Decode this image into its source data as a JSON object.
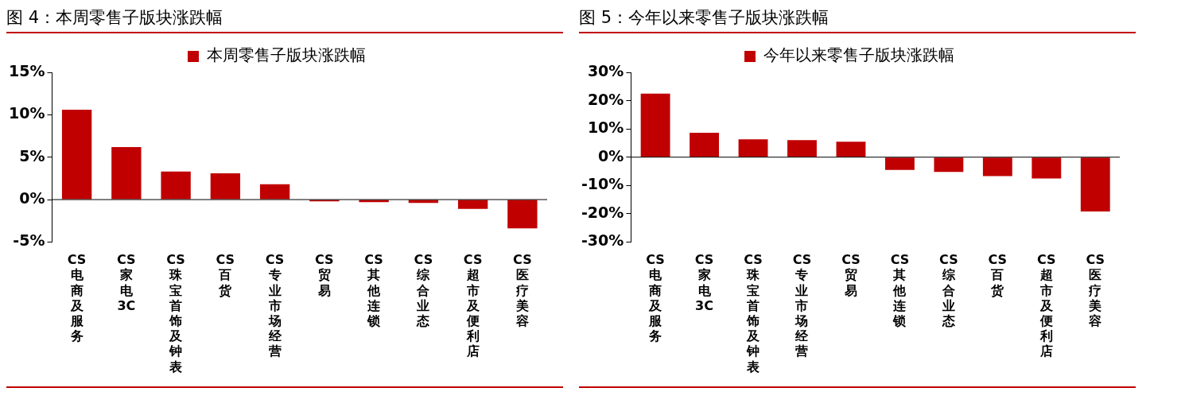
{
  "chart_data": [
    {
      "type": "bar",
      "title": "图 4：本周零售子版块涨跌幅",
      "categories": [
        "CS电商及服务",
        "CS家电3C",
        "CS珠宝首饰及钟表",
        "CS百货",
        "CS专业市场经营",
        "CS贸易",
        "CS其他连锁",
        "CS综合业态",
        "CS超市及便利店",
        "CS医疗美容"
      ],
      "series": [
        {
          "name": "本周零售子版块涨跌幅",
          "color": "#c00000",
          "values": [
            10.6,
            6.2,
            3.3,
            3.1,
            1.8,
            -0.2,
            -0.3,
            -0.4,
            -1.1,
            -3.4
          ]
        }
      ],
      "ylim": [
        -5,
        15
      ],
      "yticks": [
        {
          "value": -5,
          "label": "-5%"
        },
        {
          "value": 0,
          "label": "0%"
        },
        {
          "value": 5,
          "label": "5%"
        },
        {
          "value": 10,
          "label": "10%"
        },
        {
          "value": 15,
          "label": "15%"
        }
      ],
      "grid": false,
      "legend": "top",
      "ref_lines": [
        {
          "axis": "y",
          "value": 0
        }
      ]
    },
    {
      "type": "bar",
      "title": "图 5：今年以来零售子版块涨跌幅",
      "categories": [
        "CS电商及服务",
        "CS家电3C",
        "CS珠宝首饰及钟表",
        "CS专业市场经营",
        "CS贸易",
        "CS其他连锁",
        "CS综合业态",
        "CS百货",
        "CS超市及便利店",
        "CS医疗美容"
      ],
      "series": [
        {
          "name": "今年以来零售子版块涨跌幅",
          "color": "#c00000",
          "values": [
            22.5,
            8.6,
            6.3,
            6.0,
            5.5,
            -4.5,
            -5.2,
            -6.7,
            -7.5,
            -19.2
          ]
        }
      ],
      "ylim": [
        -30,
        30
      ],
      "yticks": [
        {
          "value": -30,
          "label": "-30%"
        },
        {
          "value": -20,
          "label": "-20%"
        },
        {
          "value": -10,
          "label": "-10%"
        },
        {
          "value": 0,
          "label": "0%"
        },
        {
          "value": 10,
          "label": "10%"
        },
        {
          "value": 20,
          "label": "20%"
        },
        {
          "value": 30,
          "label": "30%"
        }
      ],
      "grid": false,
      "legend": "top",
      "ref_lines": [
        {
          "axis": "y",
          "value": 0
        }
      ]
    }
  ]
}
